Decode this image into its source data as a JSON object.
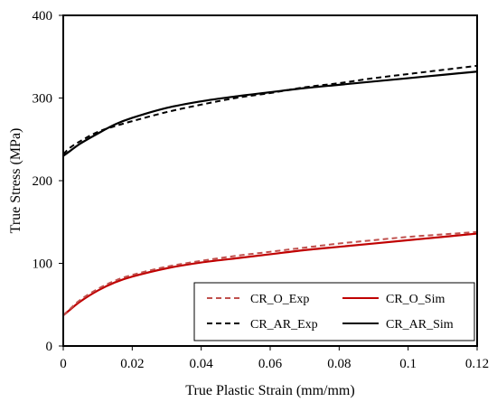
{
  "chart_data": {
    "type": "line",
    "title": "",
    "xlabel": "True Plastic Strain (mm/mm)",
    "ylabel": "True Stress (MPa)",
    "xlim": [
      0,
      0.12
    ],
    "ylim": [
      0,
      400
    ],
    "xticks": [
      0,
      0.02,
      0.04,
      0.06,
      0.08,
      0.1,
      0.12
    ],
    "xtick_labels": [
      "0",
      "0.02",
      "0.04",
      "0.06",
      "0.08",
      "0.1",
      "0.12"
    ],
    "yticks": [
      0,
      100,
      200,
      300,
      400
    ],
    "ytick_labels": [
      "0",
      "100",
      "200",
      "300",
      "400"
    ],
    "grid": false,
    "legend_position": "bottom-right",
    "series": [
      {
        "name": "CR_O_Exp",
        "color": "#c0504d",
        "dash": "dashed",
        "x": [
          0,
          0.002,
          0.005,
          0.01,
          0.015,
          0.02,
          0.03,
          0.04,
          0.05,
          0.06,
          0.07,
          0.08,
          0.09,
          0.1,
          0.11,
          0.12
        ],
        "y": [
          37,
          45,
          56,
          69,
          79,
          86,
          96,
          103,
          109,
          114,
          119,
          124,
          128,
          132,
          135,
          138
        ]
      },
      {
        "name": "CR_O_Sim",
        "color": "#c00000",
        "dash": "solid",
        "x": [
          0,
          0.002,
          0.005,
          0.01,
          0.015,
          0.02,
          0.03,
          0.04,
          0.05,
          0.06,
          0.07,
          0.08,
          0.09,
          0.1,
          0.11,
          0.12
        ],
        "y": [
          37,
          44,
          54,
          67,
          77,
          84,
          94,
          101,
          106,
          111,
          116,
          120,
          124,
          128,
          132,
          136
        ]
      },
      {
        "name": "CR_AR_Exp",
        "color": "#000000",
        "dash": "dashed",
        "x": [
          0,
          0.002,
          0.005,
          0.01,
          0.015,
          0.02,
          0.03,
          0.04,
          0.05,
          0.06,
          0.07,
          0.08,
          0.09,
          0.1,
          0.11,
          0.12
        ],
        "y": [
          232,
          240,
          248,
          259,
          266,
          272,
          283,
          292,
          300,
          306,
          313,
          318,
          324,
          329,
          334,
          339
        ]
      },
      {
        "name": "CR_AR_Sim",
        "color": "#000000",
        "dash": "solid",
        "x": [
          0,
          0.002,
          0.005,
          0.01,
          0.015,
          0.02,
          0.03,
          0.04,
          0.05,
          0.06,
          0.07,
          0.08,
          0.09,
          0.1,
          0.11,
          0.12
        ],
        "y": [
          230,
          236,
          245,
          257,
          268,
          276,
          288,
          296,
          302,
          307,
          312,
          316,
          320,
          324,
          328,
          332
        ]
      }
    ]
  }
}
